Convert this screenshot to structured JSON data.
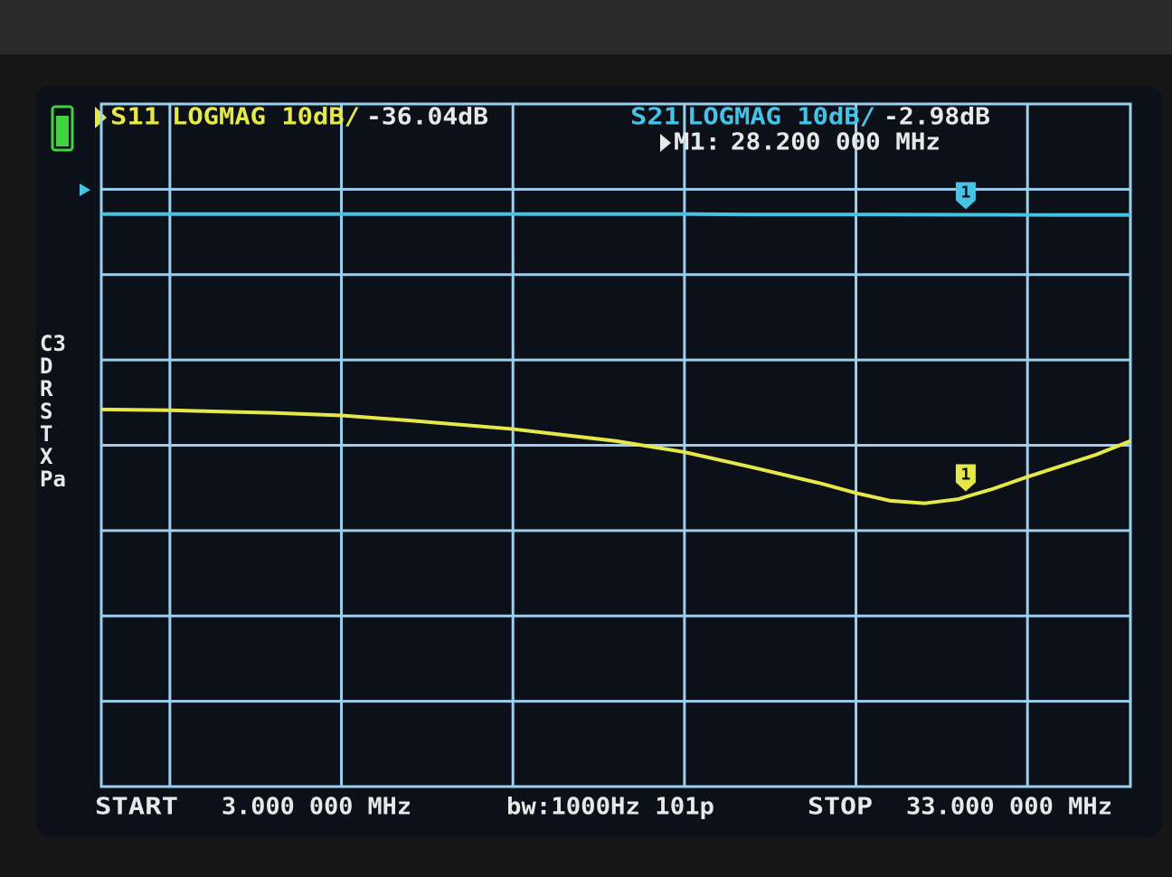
{
  "chart_data": {
    "type": "line",
    "x": [
      3,
      5,
      8,
      10,
      12,
      15,
      18,
      20,
      22,
      24,
      25,
      26,
      27,
      28,
      28.2,
      29,
      30,
      31,
      32,
      33
    ],
    "xlim": [
      3,
      33
    ],
    "xticks": [
      5,
      10,
      15,
      20,
      25,
      30
    ],
    "ylim": [
      -70,
      10
    ],
    "yticks": [
      -60,
      -50,
      -40,
      -30,
      -20,
      -10,
      0
    ],
    "grid": true,
    "series": [
      {
        "name": "S11",
        "format": "LOGMAG 10dB/",
        "readout": "-36.04dB",
        "color": "#e6e84a",
        "values": [
          -25.8,
          -25.9,
          -26.2,
          -26.5,
          -27.1,
          -28.1,
          -29.5,
          -30.8,
          -32.6,
          -34.5,
          -35.6,
          -36.5,
          -36.8,
          -36.3,
          -36.04,
          -35.1,
          -33.7,
          -32.4,
          -31.1,
          -29.5
        ]
      },
      {
        "name": "S21",
        "format": "LOGMAG 10dB/",
        "readout": "-2.98dB",
        "color": "#45c3e6",
        "values": [
          -2.9,
          -2.9,
          -2.9,
          -2.9,
          -2.9,
          -2.9,
          -2.9,
          -2.9,
          -2.95,
          -2.95,
          -2.95,
          -2.95,
          -2.97,
          -2.98,
          -2.98,
          -2.98,
          -3.0,
          -3.0,
          -3.0,
          -3.0
        ]
      }
    ],
    "marker": {
      "name": "M1:",
      "label": "1",
      "x": 28.2,
      "readout": "28.200 000 MHz"
    },
    "status": [
      "C3",
      "D",
      "R",
      "S",
      "T",
      "X",
      "Pa"
    ],
    "footer": {
      "start_label": "START",
      "start": "3.000 000 MHz",
      "bandwidth": "bw:1000Hz 101p",
      "stop_label": "STOP",
      "stop": "33.000 000 MHz"
    }
  }
}
